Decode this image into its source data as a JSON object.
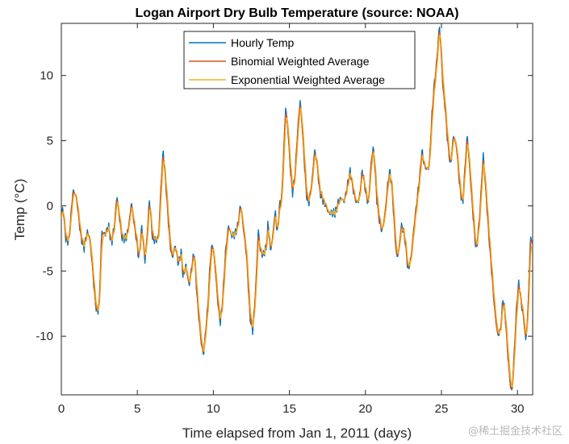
{
  "chart_data": {
    "type": "line",
    "title": "Logan Airport Dry Bulb Temperature (source: NOAA)",
    "xlabel": "Time elapsed from Jan 1, 2011 (days)",
    "ylabel": "Temp (°C)",
    "xlim": [
      0,
      31
    ],
    "ylim": [
      -14.5,
      14
    ],
    "xticks": [
      0,
      5,
      10,
      15,
      20,
      25,
      30
    ],
    "yticks": [
      -10,
      -5,
      0,
      5,
      10
    ],
    "grid": false,
    "legend_position": "top-center",
    "keyframes": [
      [
        0.0,
        -1.0
      ],
      [
        0.1,
        0.0
      ],
      [
        0.3,
        -2.6
      ],
      [
        0.5,
        -2.7
      ],
      [
        0.75,
        1.0
      ],
      [
        0.85,
        1.1
      ],
      [
        1.0,
        0.6
      ],
      [
        1.3,
        -2.5
      ],
      [
        1.5,
        -3.2
      ],
      [
        1.7,
        -2.0
      ],
      [
        1.85,
        -2.3
      ],
      [
        2.0,
        -4.0
      ],
      [
        2.2,
        -7.0
      ],
      [
        2.35,
        -8.3
      ],
      [
        2.5,
        -7.5
      ],
      [
        2.65,
        -2.0
      ],
      [
        2.9,
        -2.2
      ],
      [
        3.1,
        -1.5
      ],
      [
        3.3,
        -2.9
      ],
      [
        3.5,
        -1.5
      ],
      [
        3.65,
        0.9
      ],
      [
        3.8,
        -0.7
      ],
      [
        4.0,
        -2.5
      ],
      [
        4.3,
        -2.4
      ],
      [
        4.5,
        -1.0
      ],
      [
        4.6,
        0.4
      ],
      [
        4.8,
        -1.5
      ],
      [
        5.0,
        -3.0
      ],
      [
        5.1,
        -4.2
      ],
      [
        5.3,
        -1.5
      ],
      [
        5.5,
        -4.3
      ],
      [
        5.6,
        -3.0
      ],
      [
        5.8,
        0.6
      ],
      [
        6.0,
        -2.5
      ],
      [
        6.2,
        -2.6
      ],
      [
        6.4,
        -2.5
      ],
      [
        6.55,
        1.5
      ],
      [
        6.7,
        4.3
      ],
      [
        6.85,
        2.0
      ],
      [
        7.0,
        -0.5
      ],
      [
        7.15,
        -3.0
      ],
      [
        7.3,
        -4.0
      ],
      [
        7.5,
        -3.0
      ],
      [
        7.7,
        -4.5
      ],
      [
        7.9,
        -3.5
      ],
      [
        8.0,
        -5.5
      ],
      [
        8.2,
        -4.5
      ],
      [
        8.4,
        -6.2
      ],
      [
        8.6,
        -4.5
      ],
      [
        8.75,
        -3.5
      ],
      [
        8.9,
        -6.5
      ],
      [
        9.0,
        -8.0
      ],
      [
        9.2,
        -10.5
      ],
      [
        9.35,
        -11.5
      ],
      [
        9.5,
        -9.5
      ],
      [
        9.65,
        -7.5
      ],
      [
        9.8,
        -4.0
      ],
      [
        9.95,
        -2.8
      ],
      [
        10.1,
        -4.5
      ],
      [
        10.3,
        -7.5
      ],
      [
        10.45,
        -9.0
      ],
      [
        10.6,
        -7.5
      ],
      [
        10.8,
        -3.5
      ],
      [
        11.0,
        -1.5
      ],
      [
        11.2,
        -2.3
      ],
      [
        11.4,
        -2.2
      ],
      [
        11.6,
        -1.6
      ],
      [
        11.8,
        0.2
      ],
      [
        12.0,
        -2.0
      ],
      [
        12.2,
        -4.0
      ],
      [
        12.4,
        -8.5
      ],
      [
        12.6,
        -9.6
      ],
      [
        12.8,
        -6.0
      ],
      [
        12.95,
        -1.8
      ],
      [
        13.1,
        -3.5
      ],
      [
        13.3,
        -3.8
      ],
      [
        13.5,
        -3.0
      ],
      [
        13.6,
        -1.2
      ],
      [
        13.75,
        -3.5
      ],
      [
        13.9,
        -2.5
      ],
      [
        14.0,
        -1.0
      ],
      [
        14.1,
        -0.5
      ],
      [
        14.2,
        -2.3
      ],
      [
        14.35,
        0.0
      ],
      [
        14.5,
        0.6
      ],
      [
        14.6,
        3.5
      ],
      [
        14.75,
        7.6
      ],
      [
        14.9,
        6.0
      ],
      [
        15.05,
        3.0
      ],
      [
        15.2,
        1.0
      ],
      [
        15.35,
        2.0
      ],
      [
        15.5,
        5.0
      ],
      [
        15.7,
        8.2
      ],
      [
        15.85,
        6.0
      ],
      [
        16.0,
        3.0
      ],
      [
        16.15,
        0.5
      ],
      [
        16.3,
        0.3
      ],
      [
        16.5,
        2.0
      ],
      [
        16.65,
        4.3
      ],
      [
        16.8,
        3.5
      ],
      [
        17.0,
        1.0
      ],
      [
        17.2,
        0.5
      ],
      [
        17.4,
        0.0
      ],
      [
        17.6,
        -0.6
      ],
      [
        17.8,
        -0.5
      ],
      [
        18.0,
        -0.6
      ],
      [
        18.2,
        0.2
      ],
      [
        18.4,
        0.6
      ],
      [
        18.6,
        0.3
      ],
      [
        18.8,
        1.4
      ],
      [
        19.0,
        2.7
      ],
      [
        19.2,
        1.2
      ],
      [
        19.4,
        0.2
      ],
      [
        19.6,
        0.5
      ],
      [
        19.8,
        2.8
      ],
      [
        20.0,
        1.2
      ],
      [
        20.2,
        0.0
      ],
      [
        20.35,
        3.0
      ],
      [
        20.5,
        4.5
      ],
      [
        20.6,
        3.5
      ],
      [
        20.75,
        0.5
      ],
      [
        20.9,
        -1.0
      ],
      [
        21.1,
        -2.0
      ],
      [
        21.3,
        -0.5
      ],
      [
        21.45,
        1.5
      ],
      [
        21.6,
        2.7
      ],
      [
        21.75,
        1.5
      ],
      [
        21.9,
        -1.5
      ],
      [
        22.05,
        -4.0
      ],
      [
        22.2,
        -3.5
      ],
      [
        22.35,
        -1.5
      ],
      [
        22.5,
        -1.8
      ],
      [
        22.65,
        -3.0
      ],
      [
        22.8,
        -5.0
      ],
      [
        23.0,
        -4.0
      ],
      [
        23.2,
        -1.5
      ],
      [
        23.35,
        0.0
      ],
      [
        23.5,
        1.5
      ],
      [
        23.6,
        2.5
      ],
      [
        23.7,
        4.3
      ],
      [
        23.9,
        3.0
      ],
      [
        24.05,
        2.8
      ],
      [
        24.2,
        3.0
      ],
      [
        24.35,
        6.5
      ],
      [
        24.5,
        9.0
      ],
      [
        24.65,
        10.5
      ],
      [
        24.8,
        12.8
      ],
      [
        24.87,
        13.9
      ],
      [
        24.95,
        12.5
      ],
      [
        25.1,
        9.0
      ],
      [
        25.25,
        7.5
      ],
      [
        25.4,
        5.0
      ],
      [
        25.6,
        3.0
      ],
      [
        25.8,
        5.5
      ],
      [
        26.0,
        4.5
      ],
      [
        26.2,
        1.5
      ],
      [
        26.4,
        0.0
      ],
      [
        26.55,
        3.0
      ],
      [
        26.7,
        5.5
      ],
      [
        26.85,
        3.0
      ],
      [
        27.0,
        0.5
      ],
      [
        27.2,
        -2.5
      ],
      [
        27.3,
        -3.5
      ],
      [
        27.5,
        -1.0
      ],
      [
        27.65,
        2.0
      ],
      [
        27.75,
        4.0
      ],
      [
        27.9,
        1.5
      ],
      [
        28.1,
        -2.0
      ],
      [
        28.3,
        -5.0
      ],
      [
        28.5,
        -8.0
      ],
      [
        28.7,
        -10.0
      ],
      [
        28.9,
        -9.5
      ],
      [
        29.05,
        -7.0
      ],
      [
        29.2,
        -8.5
      ],
      [
        29.4,
        -12.0
      ],
      [
        29.55,
        -14.0
      ],
      [
        29.65,
        -14.3
      ],
      [
        29.8,
        -11.0
      ],
      [
        29.95,
        -7.5
      ],
      [
        30.1,
        -5.8
      ],
      [
        30.25,
        -7.5
      ],
      [
        30.4,
        -8.5
      ],
      [
        30.55,
        -10.5
      ],
      [
        30.7,
        -8.0
      ],
      [
        30.8,
        -4.0
      ],
      [
        30.9,
        -2.0
      ],
      [
        31.0,
        -3.5
      ]
    ],
    "series": [
      {
        "name": "Hourly Temp",
        "color": "#0072BD",
        "kind": "raw"
      },
      {
        "name": "Binomial Weighted Average",
        "color": "#D95319",
        "kind": "binomial"
      },
      {
        "name": "Exponential Weighted Average",
        "color": "#EDB120",
        "kind": "exponential"
      }
    ]
  },
  "watermark": "@稀土掘金技术社区"
}
